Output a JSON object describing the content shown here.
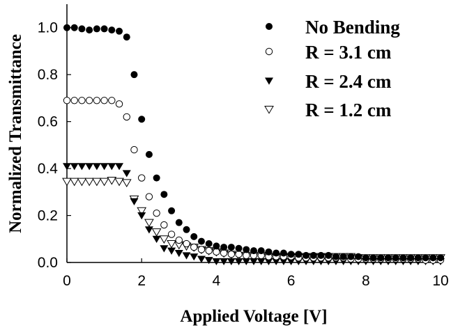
{
  "chart_data": {
    "type": "scatter",
    "title": "",
    "xlabel": "Applied Voltage [V]",
    "ylabel": "Normalized Transmittance",
    "xlim": [
      0,
      10
    ],
    "ylim": [
      0,
      1.1
    ],
    "x_ticks": [
      "0",
      "2",
      "4",
      "6",
      "8",
      "10"
    ],
    "y_ticks": [
      "0.0",
      "0.2",
      "0.4",
      "0.6",
      "0.8",
      "1.0"
    ],
    "grid": false,
    "legend_position": "top-right",
    "series": [
      {
        "name": "No Bending",
        "marker": "filled-circle",
        "x": [
          0,
          0.2,
          0.4,
          0.6,
          0.8,
          1.0,
          1.2,
          1.4,
          1.6,
          1.8,
          2.0,
          2.2,
          2.4,
          2.6,
          2.8,
          3.0,
          3.2,
          3.4,
          3.6,
          3.8,
          4.0,
          4.2,
          4.4,
          4.6,
          4.8,
          5.0,
          5.2,
          5.4,
          5.6,
          5.8,
          6.0,
          6.2,
          6.4,
          6.6,
          6.8,
          7.0,
          7.2,
          7.4,
          7.6,
          7.8,
          8.0,
          8.2,
          8.4,
          8.6,
          8.8,
          9.0,
          9.2,
          9.4,
          9.6,
          9.8,
          10.0
        ],
        "y": [
          1.0,
          1.0,
          0.995,
          0.99,
          0.995,
          0.995,
          0.99,
          0.985,
          0.96,
          0.8,
          0.61,
          0.46,
          0.36,
          0.29,
          0.22,
          0.17,
          0.14,
          0.11,
          0.09,
          0.08,
          0.07,
          0.065,
          0.065,
          0.06,
          0.055,
          0.05,
          0.05,
          0.045,
          0.04,
          0.04,
          0.035,
          0.035,
          0.03,
          0.03,
          0.03,
          0.03,
          0.025,
          0.025,
          0.025,
          0.025,
          0.02,
          0.02,
          0.02,
          0.02,
          0.02,
          0.02,
          0.02,
          0.02,
          0.02,
          0.02,
          0.02
        ]
      },
      {
        "name": "R = 3.1 cm",
        "marker": "open-circle",
        "x": [
          0,
          0.2,
          0.4,
          0.6,
          0.8,
          1.0,
          1.2,
          1.4,
          1.6,
          1.8,
          2.0,
          2.2,
          2.4,
          2.6,
          2.8,
          3.0,
          3.2,
          3.4,
          3.6,
          3.8,
          4.0,
          4.2,
          4.4,
          4.6,
          4.8,
          5.0,
          5.2,
          5.4,
          5.6,
          5.8,
          6.0,
          6.2,
          6.4,
          6.6,
          6.8,
          7.0,
          7.2,
          7.4,
          7.6,
          7.8,
          8.0,
          8.2,
          8.4,
          8.6,
          8.8,
          9.0,
          9.2,
          9.4,
          9.6,
          9.8,
          10.0
        ],
        "y": [
          0.69,
          0.69,
          0.69,
          0.69,
          0.69,
          0.69,
          0.69,
          0.675,
          0.62,
          0.48,
          0.36,
          0.28,
          0.21,
          0.16,
          0.12,
          0.095,
          0.08,
          0.065,
          0.055,
          0.05,
          0.045,
          0.04,
          0.035,
          0.035,
          0.03,
          0.03,
          0.03,
          0.025,
          0.025,
          0.025,
          0.025,
          0.02,
          0.02,
          0.02,
          0.02,
          0.02,
          0.02,
          0.02,
          0.015,
          0.015,
          0.015,
          0.015,
          0.015,
          0.015,
          0.015,
          0.015,
          0.015,
          0.015,
          0.01,
          0.01,
          0.01
        ]
      },
      {
        "name": "R = 2.4 cm",
        "marker": "filled-triangle-down",
        "x": [
          0,
          0.2,
          0.4,
          0.6,
          0.8,
          1.0,
          1.2,
          1.4,
          1.6,
          1.8,
          2.0,
          2.2,
          2.4,
          2.6,
          2.8,
          3.0,
          3.2,
          3.4,
          3.6,
          3.8,
          4.0,
          4.2,
          4.4,
          4.6,
          4.8,
          5.0,
          5.2,
          5.4,
          5.6,
          5.8,
          6.0,
          6.2,
          6.4,
          6.6,
          6.8,
          7.0,
          7.2,
          7.4,
          7.6,
          7.8,
          8.0,
          8.2,
          8.4,
          8.6,
          8.8,
          9.0,
          9.2,
          9.4,
          9.6,
          9.8,
          10.0
        ],
        "y": [
          0.41,
          0.41,
          0.41,
          0.41,
          0.41,
          0.41,
          0.41,
          0.41,
          0.38,
          0.26,
          0.2,
          0.14,
          0.1,
          0.06,
          0.05,
          0.04,
          0.03,
          0.025,
          0.015,
          0.01,
          0.005,
          0.005,
          0.005,
          0.005,
          0.005,
          0.005,
          0.005,
          0.005,
          0.005,
          0.005,
          0.005,
          0.005,
          0.005,
          0.005,
          0.005,
          0.005,
          0.005,
          0.005,
          0.005,
          0.005,
          0.005,
          0.005,
          0.005,
          0.005,
          0.005,
          0.005,
          0.005,
          0.005,
          0.005,
          0.005,
          0.005
        ]
      },
      {
        "name": "R = 1.2 cm",
        "marker": "open-triangle-down",
        "x": [
          0,
          0.2,
          0.4,
          0.6,
          0.8,
          1.0,
          1.2,
          1.4,
          1.6,
          1.8,
          2.0,
          2.2,
          2.4,
          2.6,
          2.8,
          3.0,
          3.2,
          3.4,
          3.6,
          3.8,
          4.0,
          4.2,
          4.4,
          4.6,
          4.8,
          5.0,
          5.2,
          5.4,
          5.6,
          5.8,
          6.0,
          6.2,
          6.4,
          6.6,
          6.8,
          7.0,
          7.2,
          7.4,
          7.6,
          7.8,
          8.0,
          8.2,
          8.4,
          8.6,
          8.8,
          9.0,
          9.2,
          9.4,
          9.6,
          9.8,
          10.0
        ],
        "y": [
          0.345,
          0.345,
          0.345,
          0.345,
          0.345,
          0.345,
          0.35,
          0.345,
          0.34,
          0.27,
          0.22,
          0.17,
          0.13,
          0.1,
          0.08,
          0.075,
          0.07,
          0.065,
          0.055,
          0.05,
          0.045,
          0.04,
          0.035,
          0.03,
          0.03,
          0.03,
          0.03,
          0.025,
          0.025,
          0.025,
          0.025,
          0.025,
          0.025,
          0.025,
          0.025,
          0.025,
          0.025,
          0.025,
          0.025,
          0.02,
          0.02,
          0.02,
          0.02,
          0.02,
          0.02,
          0.02,
          0.02,
          0.02,
          0.02,
          0.02,
          0.02
        ]
      }
    ]
  }
}
